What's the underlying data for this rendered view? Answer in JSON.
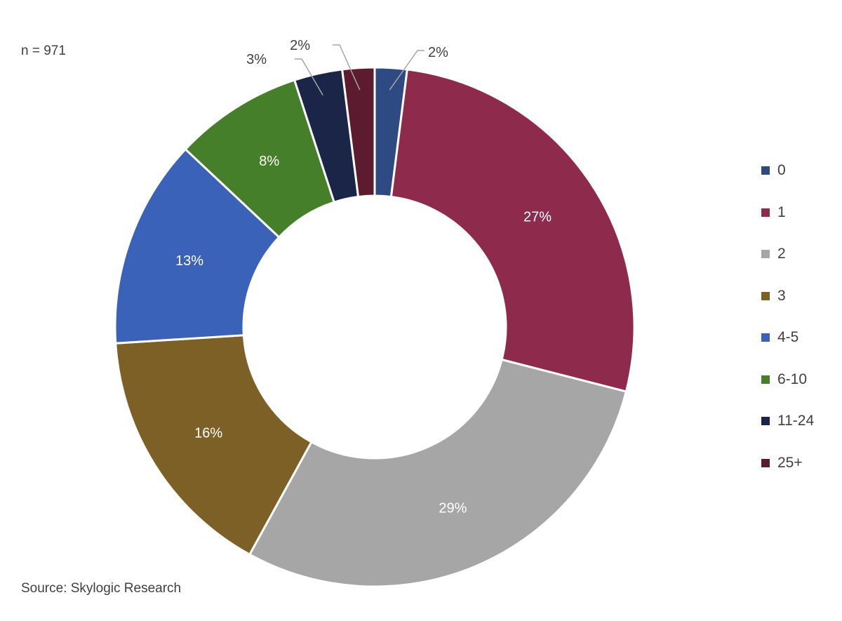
{
  "sample_note": "n = 971",
  "source_note": "Source: Skylogic Research",
  "chart_data": {
    "type": "pie",
    "donut": true,
    "categories": [
      "0",
      "1",
      "2",
      "3",
      "4-5",
      "6-10",
      "11-24",
      "25+"
    ],
    "values": [
      2,
      27,
      29,
      16,
      13,
      8,
      3,
      2
    ],
    "data_labels": [
      "2%",
      "27%",
      "29%",
      "16%",
      "13%",
      "8%",
      "3%",
      "2%"
    ],
    "colors": [
      "#2E4A82",
      "#8E2A4C",
      "#A6A6A6",
      "#7D6025",
      "#3A62B8",
      "#467F2A",
      "#1A2547",
      "#5C1B2E"
    ],
    "legend_position": "right"
  }
}
